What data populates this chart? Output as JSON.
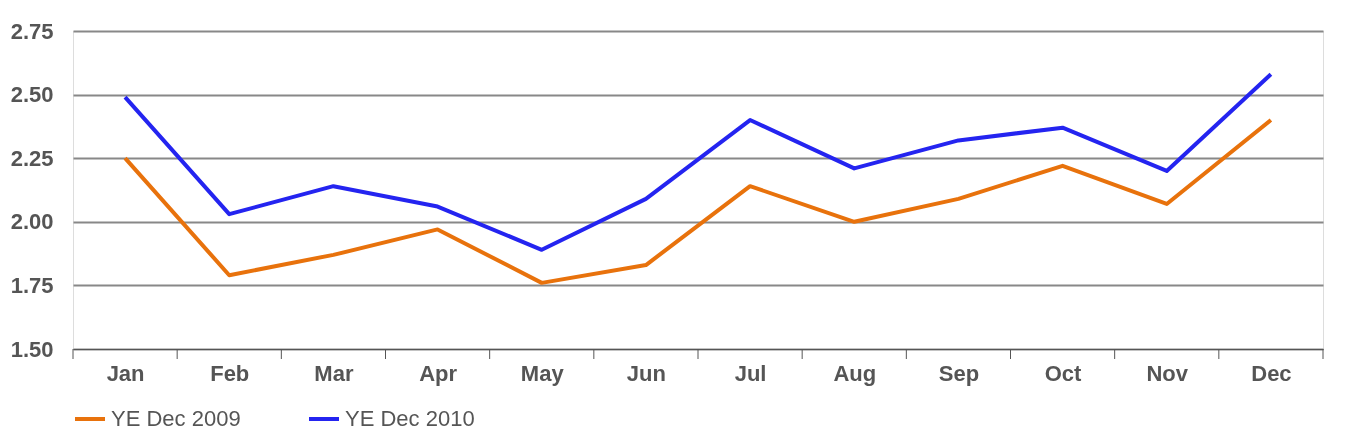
{
  "chart_data": {
    "type": "line",
    "categories": [
      "Jan",
      "Feb",
      "Mar",
      "Apr",
      "May",
      "Jun",
      "Jul",
      "Aug",
      "Sep",
      "Oct",
      "Nov",
      "Dec"
    ],
    "series": [
      {
        "name": "YE Dec 2009",
        "color": "#e8720c",
        "values": [
          2.25,
          1.79,
          1.87,
          1.97,
          1.76,
          1.83,
          2.14,
          2.0,
          2.09,
          2.22,
          2.07,
          2.4
        ]
      },
      {
        "name": "YE Dec 2010",
        "color": "#2424f0",
        "values": [
          2.49,
          2.03,
          2.14,
          2.06,
          1.89,
          2.09,
          2.4,
          2.21,
          2.32,
          2.37,
          2.2,
          2.58
        ]
      }
    ],
    "ylim": [
      1.5,
      2.75
    ],
    "yticks": [
      {
        "value": 1.5,
        "label": "1.50"
      },
      {
        "value": 1.75,
        "label": "1.75"
      },
      {
        "value": 2.0,
        "label": "2.00"
      },
      {
        "value": 2.25,
        "label": "2.25"
      },
      {
        "value": 2.5,
        "label": "2.50"
      },
      {
        "value": 2.75,
        "label": "2.75"
      }
    ],
    "grid": "y",
    "legend": "bottom",
    "marker": "none",
    "line_style": "solid"
  }
}
